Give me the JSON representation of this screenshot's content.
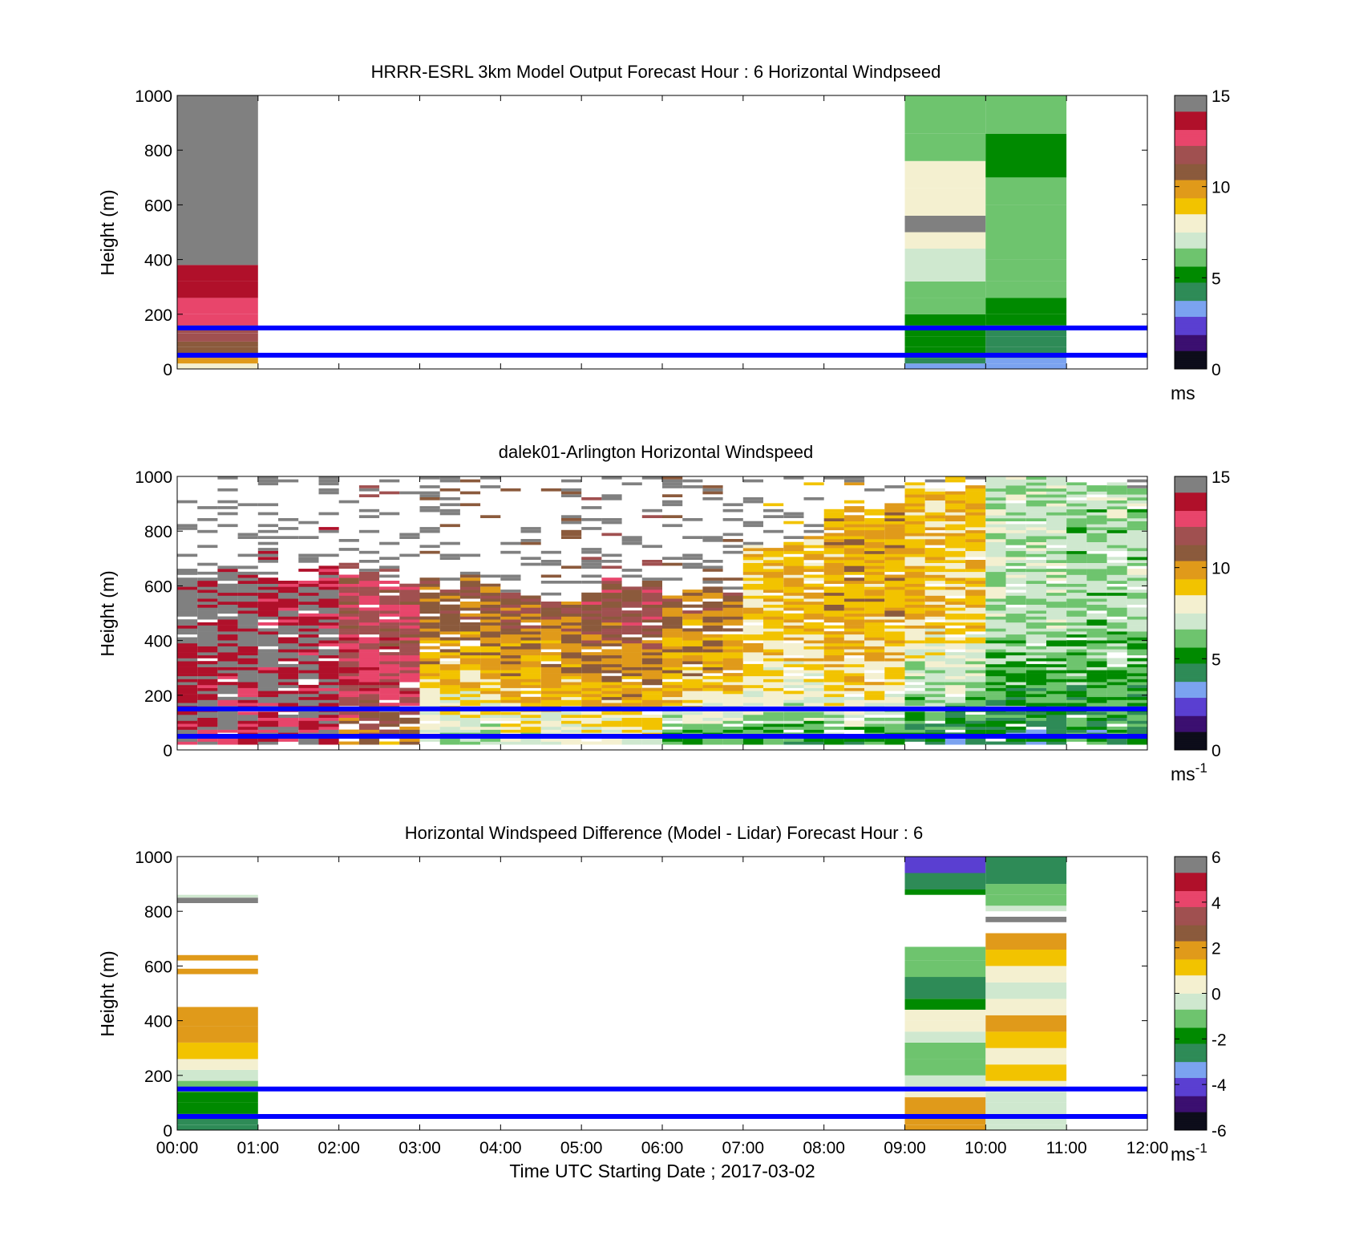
{
  "colors": {
    "line_color": "#0000ff",
    "missing": "#ffffff",
    "colormap_stops": [
      "#0d0d1a",
      "#3b0f70",
      "#5a3fd1",
      "#7ba3f0",
      "#2e8b57",
      "#008a00",
      "#6ec46e",
      "#cfe8cf",
      "#f4f0d0",
      "#f2c300",
      "#e09a1a",
      "#8b5a3c",
      "#a05050",
      "#e8456b",
      "#b0102a",
      "#808080"
    ]
  },
  "chart_data": [
    {
      "type": "heatmap",
      "title": "HRRR-ESRL 3km Model Output   Forecast Hour : 6 Horizontal Windpseed",
      "ylabel": "Height (m)",
      "xlabel": "",
      "xlim": [
        "00:00",
        "12:00"
      ],
      "ylim": [
        0,
        1000
      ],
      "yticks": [
        "0",
        "200",
        "400",
        "600",
        "800",
        "1000"
      ],
      "show_xtick_labels": false,
      "colorbar": {
        "min": 0,
        "max": 15,
        "ticks": [
          "0",
          "5",
          "10",
          "15"
        ],
        "unit": "ms",
        "unit_sup": ""
      },
      "reference_lines_m": [
        50,
        150
      ],
      "grid": false,
      "data_hours": [
        0,
        9,
        10
      ],
      "columns": [
        {
          "hour": 0,
          "profile": [
            [
              20,
              8
            ],
            [
              40,
              9.5
            ],
            [
              60,
              10.5
            ],
            [
              80,
              11
            ],
            [
              100,
              11
            ],
            [
              130,
              11.5
            ],
            [
              160,
              12
            ],
            [
              200,
              12.5
            ],
            [
              260,
              13
            ],
            [
              320,
              14
            ],
            [
              380,
              14
            ],
            [
              450,
              14.5
            ],
            [
              1000,
              16
            ]
          ]
        },
        {
          "hour": 9,
          "profile": [
            [
              20,
              3.5
            ],
            [
              40,
              4.5
            ],
            [
              80,
              5
            ],
            [
              120,
              5
            ],
            [
              160,
              5
            ],
            [
              200,
              5.5
            ],
            [
              260,
              6
            ],
            [
              320,
              6.5
            ],
            [
              380,
              7
            ],
            [
              440,
              7
            ],
            [
              500,
              7.5
            ],
            [
              560,
              16
            ],
            [
              660,
              8
            ],
            [
              760,
              7.5
            ],
            [
              860,
              6.5
            ],
            [
              1000,
              6.5
            ]
          ]
        },
        {
          "hour": 10,
          "profile": [
            [
              20,
              3
            ],
            [
              40,
              3.5
            ],
            [
              80,
              4.5
            ],
            [
              120,
              4.5
            ],
            [
              160,
              4.5
            ],
            [
              200,
              5
            ],
            [
              260,
              5.5
            ],
            [
              320,
              6
            ],
            [
              400,
              6
            ],
            [
              500,
              6.5
            ],
            [
              600,
              6.5
            ],
            [
              700,
              6
            ],
            [
              860,
              5.5
            ],
            [
              1000,
              6
            ]
          ]
        }
      ]
    },
    {
      "type": "heatmap",
      "title": "dalek01-Arlington  Horizontal Windspeed",
      "ylabel": "Height (m)",
      "xlabel": "",
      "xlim": [
        "00:00",
        "12:00"
      ],
      "ylim": [
        0,
        1000
      ],
      "yticks": [
        "0",
        "200",
        "400",
        "600",
        "800",
        "1000"
      ],
      "show_xtick_labels": false,
      "colorbar": {
        "min": 0,
        "max": 15,
        "ticks": [
          "0",
          "5",
          "10",
          "15"
        ],
        "unit": "ms",
        "unit_sup": "-1"
      },
      "reference_lines_m": [
        50,
        150
      ],
      "grid": false,
      "profiles_by_hour": [
        {
          "hour": 0,
          "low": 13.5,
          "mid": 14,
          "high": 14.5,
          "top_valid_m": 650
        },
        {
          "hour": 1,
          "low": 13.5,
          "mid": 14,
          "high": 14,
          "top_valid_m": 640
        },
        {
          "hour": 2,
          "low": 10,
          "mid": 12.5,
          "high": 12,
          "top_valid_m": 620
        },
        {
          "hour": 3,
          "low": 6.5,
          "mid": 8.5,
          "high": 10.5,
          "top_valid_m": 600
        },
        {
          "hour": 4,
          "low": 7,
          "mid": 9,
          "high": 11,
          "top_valid_m": 560
        },
        {
          "hour": 5,
          "low": 7,
          "mid": 9.5,
          "high": 11.5,
          "top_valid_m": 600
        },
        {
          "hour": 6,
          "low": 5,
          "mid": 9,
          "high": 10.5,
          "top_valid_m": 580
        },
        {
          "hour": 7,
          "low": 5,
          "mid": 8,
          "high": 9,
          "top_valid_m": 760
        },
        {
          "hour": 8,
          "low": 5,
          "mid": 8.5,
          "high": 9.5,
          "top_valid_m": 900
        },
        {
          "hour": 9,
          "low": 4,
          "mid": 6.5,
          "high": 9,
          "top_valid_m": 960
        },
        {
          "hour": 10,
          "low": 4,
          "mid": 5.5,
          "high": 7,
          "top_valid_m": 980
        },
        {
          "hour": 11,
          "low": 4.5,
          "mid": 5.5,
          "high": 6.5,
          "top_valid_m": 970
        }
      ]
    },
    {
      "type": "heatmap",
      "title": "Horizontal Windspeed Difference (Model - Lidar) Forecast Hour : 6",
      "ylabel": "Height (m)",
      "xlabel": "Time UTC  Starting Date ; 2017-03-02",
      "xlim": [
        "00:00",
        "12:00"
      ],
      "ylim": [
        0,
        1000
      ],
      "yticks": [
        "0",
        "200",
        "400",
        "600",
        "800",
        "1000"
      ],
      "xticks": [
        "00:00",
        "01:00",
        "02:00",
        "03:00",
        "04:00",
        "05:00",
        "06:00",
        "07:00",
        "08:00",
        "09:00",
        "10:00",
        "11:00",
        "12:00"
      ],
      "show_xtick_labels": true,
      "colorbar": {
        "min": -6,
        "max": 6,
        "ticks": [
          "-6",
          "-4",
          "-2",
          "0",
          "2",
          "4",
          "6"
        ],
        "unit": "ms",
        "unit_sup": "-1"
      },
      "reference_lines_m": [
        50,
        150
      ],
      "grid": false,
      "data_hours": [
        0,
        9,
        10
      ],
      "columns": [
        {
          "hour": 0,
          "profile": [
            [
              20,
              -2.5
            ],
            [
              60,
              -2.5
            ],
            [
              100,
              -2
            ],
            [
              140,
              -2
            ],
            [
              180,
              -1
            ],
            [
              220,
              -0.5
            ],
            [
              260,
              0
            ],
            [
              320,
              0.8
            ],
            [
              380,
              1.5
            ],
            [
              450,
              2
            ],
            [
              570,
              null
            ],
            [
              590,
              2
            ],
            [
              620,
              null
            ],
            [
              640,
              1.5
            ],
            [
              830,
              null
            ],
            [
              850,
              6
            ],
            [
              860,
              -0.5
            ],
            [
              1000,
              null
            ]
          ]
        },
        {
          "hour": 9,
          "profile": [
            [
              20,
              1.5
            ],
            [
              60,
              2
            ],
            [
              120,
              1.5
            ],
            [
              160,
              0
            ],
            [
              200,
              -0.5
            ],
            [
              260,
              -1
            ],
            [
              320,
              -1
            ],
            [
              360,
              -0.5
            ],
            [
              400,
              0
            ],
            [
              440,
              0.5
            ],
            [
              480,
              -2
            ],
            [
              560,
              -2.5
            ],
            [
              620,
              -1.5
            ],
            [
              670,
              -1
            ],
            [
              860,
              null
            ],
            [
              880,
              -2
            ],
            [
              940,
              -2.5
            ],
            [
              1000,
              -4
            ]
          ]
        },
        {
          "hour": 10,
          "profile": [
            [
              20,
              -0.5
            ],
            [
              60,
              -0.5
            ],
            [
              100,
              -0.5
            ],
            [
              140,
              -0.5
            ],
            [
              180,
              0
            ],
            [
              240,
              1
            ],
            [
              300,
              0.5
            ],
            [
              360,
              1
            ],
            [
              420,
              1.5
            ],
            [
              480,
              0
            ],
            [
              540,
              -0.5
            ],
            [
              600,
              0.5
            ],
            [
              660,
              1
            ],
            [
              720,
              1.5
            ],
            [
              760,
              null
            ],
            [
              780,
              6
            ],
            [
              800,
              null
            ],
            [
              820,
              -0.5
            ],
            [
              860,
              -1
            ],
            [
              900,
              -1
            ],
            [
              940,
              -2.5
            ],
            [
              1000,
              -3
            ]
          ]
        }
      ]
    }
  ]
}
